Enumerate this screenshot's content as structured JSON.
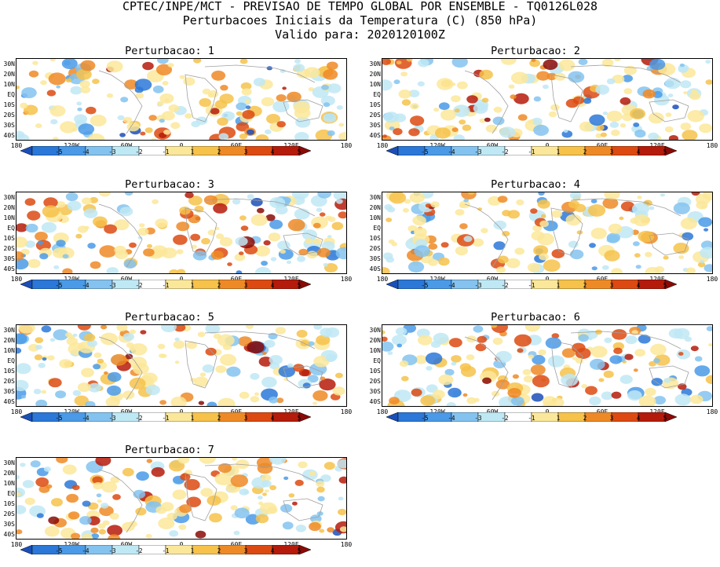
{
  "header": {
    "line1": "CPTEC/INPE/MCT - PREVISAO DE TEMPO GLOBAL POR ENSEMBLE - TQ0126L028",
    "line2": "Perturbacoes Iniciais da Temperatura (C) (850 hPa)",
    "line3": "Valido para: 2020120100Z"
  },
  "y_axis_labels": [
    "30N",
    "20N",
    "10N",
    "EQ",
    "10S",
    "20S",
    "30S",
    "40S"
  ],
  "x_axis_labels": [
    "180",
    "120W",
    "60W",
    "0",
    "60E",
    "120E",
    "180"
  ],
  "colorbar": {
    "labels": [
      "-5",
      "-4",
      "-3",
      "-2",
      "-1",
      "1",
      "2",
      "3",
      "4",
      "5"
    ],
    "colors": [
      "#1b4fb8",
      "#2b78d8",
      "#4a9ae8",
      "#84c3f0",
      "#bfe8f5",
      "#ffffff",
      "#fbe79a",
      "#f6c24a",
      "#ee8a26",
      "#dc4a12",
      "#b51b0b",
      "#8a0a06"
    ]
  },
  "panels": [
    {
      "title": "Perturbacao: 1"
    },
    {
      "title": "Perturbacao: 2"
    },
    {
      "title": "Perturbacao: 3"
    },
    {
      "title": "Perturbacao: 4"
    },
    {
      "title": "Perturbacao: 5"
    },
    {
      "title": "Perturbacao: 6"
    },
    {
      "title": "Perturbacao: 7"
    }
  ]
}
